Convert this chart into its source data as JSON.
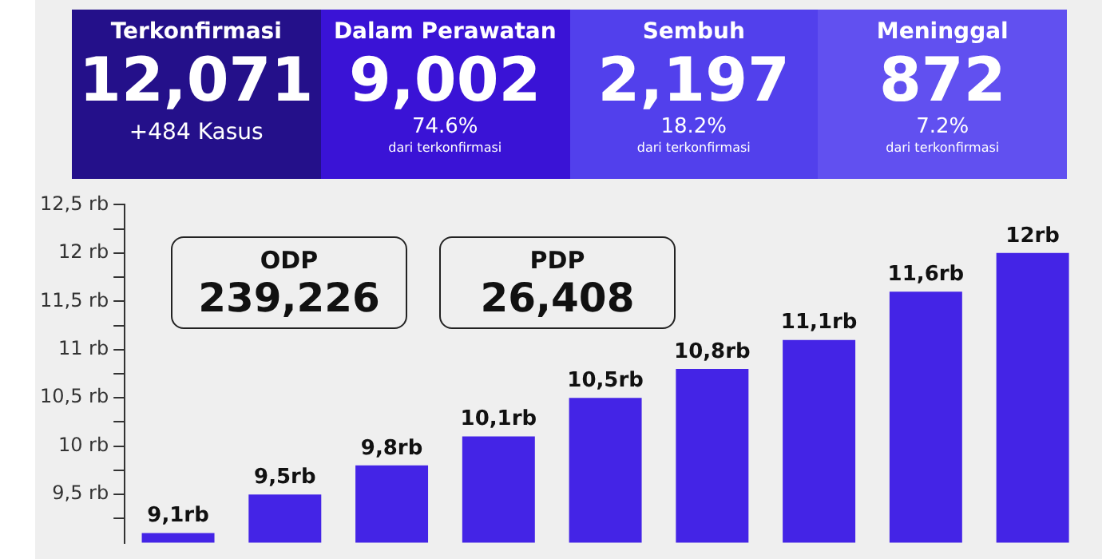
{
  "chart_data": [
    {
      "type": "other",
      "categories": [
        "Terkonfirmasi",
        "Dalam Perawatan",
        "Sembuh",
        "Meninggal"
      ],
      "value_labels": [
        "12,071",
        "9,002",
        "2,197",
        "872"
      ],
      "colors": [
        "#24108a",
        "#3a13d6",
        "#5240ec",
        "#6150f0"
      ],
      "annotations": [
        "+484 Kasus",
        "74.6%",
        "dari terkonfirmasi",
        "18.2%",
        "dari terkonfirmasi",
        "7.2%",
        "dari terkonfirmasi"
      ]
    },
    {
      "type": "bar",
      "categories": [
        null,
        null,
        null,
        null,
        null,
        null,
        null,
        null,
        null
      ],
      "values": [
        9.1,
        9.5,
        9.8,
        10.1,
        10.5,
        10.8,
        11.1,
        11.6,
        12
      ],
      "value_labels": [
        "9,1rb",
        "9,5rb",
        "9,8rb",
        "10,1rb",
        "10,5rb",
        "10,8rb",
        "11,1rb",
        "11,6rb",
        "12rb"
      ],
      "color": "#4424e6",
      "ylim": [
        9,
        12.5
      ],
      "yticks": [
        {
          "value": 9.25,
          "label": null
        },
        {
          "value": 9.5,
          "label": "9,5 rb"
        },
        {
          "value": 9.75,
          "label": null
        },
        {
          "value": 10,
          "label": "10 rb"
        },
        {
          "value": 10.25,
          "label": null
        },
        {
          "value": 10.5,
          "label": "10,5 rb"
        },
        {
          "value": 10.75,
          "label": null
        },
        {
          "value": 11,
          "label": "11 rb"
        },
        {
          "value": 11.25,
          "label": null
        },
        {
          "value": 11.5,
          "label": "11,5 rb"
        },
        {
          "value": 11.75,
          "label": null
        },
        {
          "value": 12,
          "label": "12 rb"
        },
        {
          "value": 12.25,
          "label": null
        },
        {
          "value": 12.5,
          "label": "12,5 rb"
        }
      ],
      "annotations": [
        "ODP",
        "239,226",
        "PDP",
        "26,408"
      ]
    }
  ]
}
